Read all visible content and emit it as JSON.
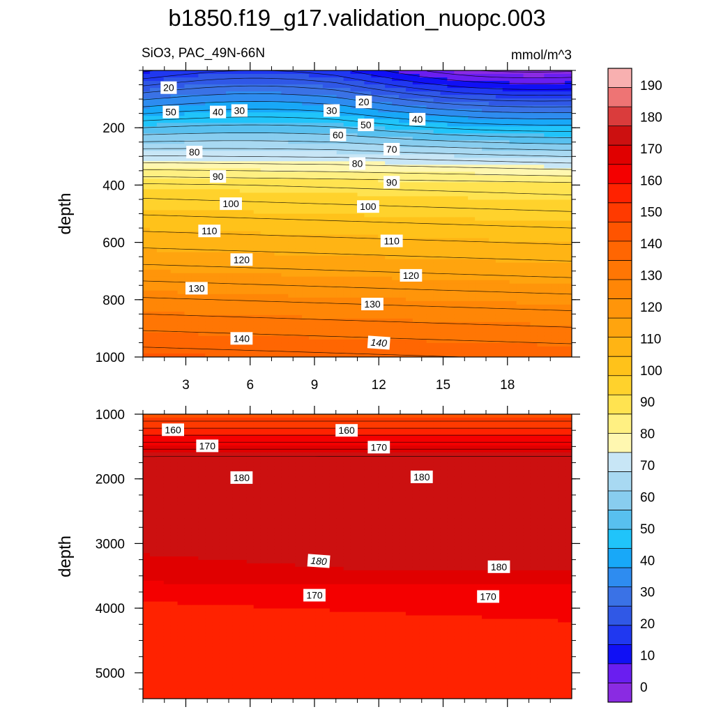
{
  "chart_data": {
    "type": "contour",
    "title": "b1850.f19_g17.validation_nuopc.003",
    "subtitle_left": "SiO3, PAC_49N-66N",
    "subtitle_right": "mmol/m^3",
    "x_range": [
      1,
      21
    ],
    "x_ticks": [
      "3",
      "6",
      "9",
      "12",
      "15",
      "18"
    ],
    "panels": [
      {
        "id": "upper",
        "ylabel": "depth",
        "ylim": [
          0,
          1000
        ],
        "y_ticks": [
          "200",
          "400",
          "600",
          "800",
          "1000"
        ],
        "contour_labels": [
          {
            "text": "20",
            "x": 2.2,
            "y": 60,
            "italic": false
          },
          {
            "text": "50",
            "x": 2.3,
            "y": 145,
            "italic": false
          },
          {
            "text": "40",
            "x": 4.5,
            "y": 145,
            "italic": false
          },
          {
            "text": "30",
            "x": 5.5,
            "y": 140,
            "italic": false
          },
          {
            "text": "30",
            "x": 9.8,
            "y": 140,
            "italic": false
          },
          {
            "text": "20",
            "x": 11.3,
            "y": 110,
            "italic": false
          },
          {
            "text": "50",
            "x": 11.4,
            "y": 190,
            "italic": false
          },
          {
            "text": "40",
            "x": 13.8,
            "y": 170,
            "italic": false
          },
          {
            "text": "60",
            "x": 10.1,
            "y": 225,
            "italic": false
          },
          {
            "text": "70",
            "x": 12.6,
            "y": 275,
            "italic": false
          },
          {
            "text": "80",
            "x": 3.4,
            "y": 285,
            "italic": false
          },
          {
            "text": "80",
            "x": 11.0,
            "y": 325,
            "italic": false
          },
          {
            "text": "90",
            "x": 4.5,
            "y": 370,
            "italic": false
          },
          {
            "text": "90",
            "x": 12.6,
            "y": 390,
            "italic": false
          },
          {
            "text": "100",
            "x": 5.1,
            "y": 465,
            "italic": false
          },
          {
            "text": "100",
            "x": 11.5,
            "y": 475,
            "italic": false
          },
          {
            "text": "110",
            "x": 4.1,
            "y": 560,
            "italic": false
          },
          {
            "text": "110",
            "x": 12.6,
            "y": 595,
            "italic": false
          },
          {
            "text": "120",
            "x": 5.6,
            "y": 660,
            "italic": false
          },
          {
            "text": "120",
            "x": 13.5,
            "y": 715,
            "italic": false
          },
          {
            "text": "130",
            "x": 3.5,
            "y": 760,
            "italic": false
          },
          {
            "text": "130",
            "x": 11.7,
            "y": 815,
            "italic": false
          },
          {
            "text": "140",
            "x": 5.6,
            "y": 935,
            "italic": false
          },
          {
            "text": "140",
            "x": 12.0,
            "y": 950,
            "italic": true
          }
        ]
      },
      {
        "id": "lower",
        "ylabel": "depth",
        "ylim": [
          1000,
          5400
        ],
        "y_ticks": [
          "1000",
          "2000",
          "3000",
          "4000",
          "5000"
        ],
        "contour_labels": [
          {
            "text": "160",
            "x": 2.4,
            "y": 1240,
            "italic": false
          },
          {
            "text": "160",
            "x": 10.5,
            "y": 1250,
            "italic": false
          },
          {
            "text": "170",
            "x": 4.0,
            "y": 1490,
            "italic": false
          },
          {
            "text": "170",
            "x": 12.0,
            "y": 1510,
            "italic": false
          },
          {
            "text": "180",
            "x": 5.6,
            "y": 1980,
            "italic": false
          },
          {
            "text": "180",
            "x": 14.0,
            "y": 1970,
            "italic": false
          },
          {
            "text": "180",
            "x": 9.2,
            "y": 3270,
            "italic": true
          },
          {
            "text": "180",
            "x": 17.6,
            "y": 3360,
            "italic": false
          },
          {
            "text": "170",
            "x": 9.0,
            "y": 3800,
            "italic": false
          },
          {
            "text": "170",
            "x": 17.1,
            "y": 3820,
            "italic": false
          }
        ]
      }
    ],
    "colorbar": {
      "levels": [
        "0",
        "10",
        "20",
        "30",
        "40",
        "50",
        "60",
        "70",
        "80",
        "90",
        "100",
        "110",
        "120",
        "130",
        "140",
        "150",
        "160",
        "170",
        "180",
        "190"
      ],
      "colors": [
        "#8a2be2",
        "#6a1ef0",
        "#1010f5",
        "#2038f0",
        "#3058e6",
        "#3a72e6",
        "#2e8cf0",
        "#18a8f8",
        "#20c4fa",
        "#58c0ef",
        "#88cdef",
        "#a8d9f2",
        "#c8e6f6",
        "#fff7b0",
        "#fff082",
        "#ffe350",
        "#ffd22c",
        "#ffc21a",
        "#ffb414",
        "#ffa40e",
        "#ff950a",
        "#ff8606",
        "#ff7604",
        "#ff6602",
        "#ff5400",
        "#ff3a00",
        "#ff2200",
        "#f40000",
        "#e00000",
        "#cc1010",
        "#da3c3c",
        "#ee7474",
        "#f8b0b0"
      ]
    }
  }
}
